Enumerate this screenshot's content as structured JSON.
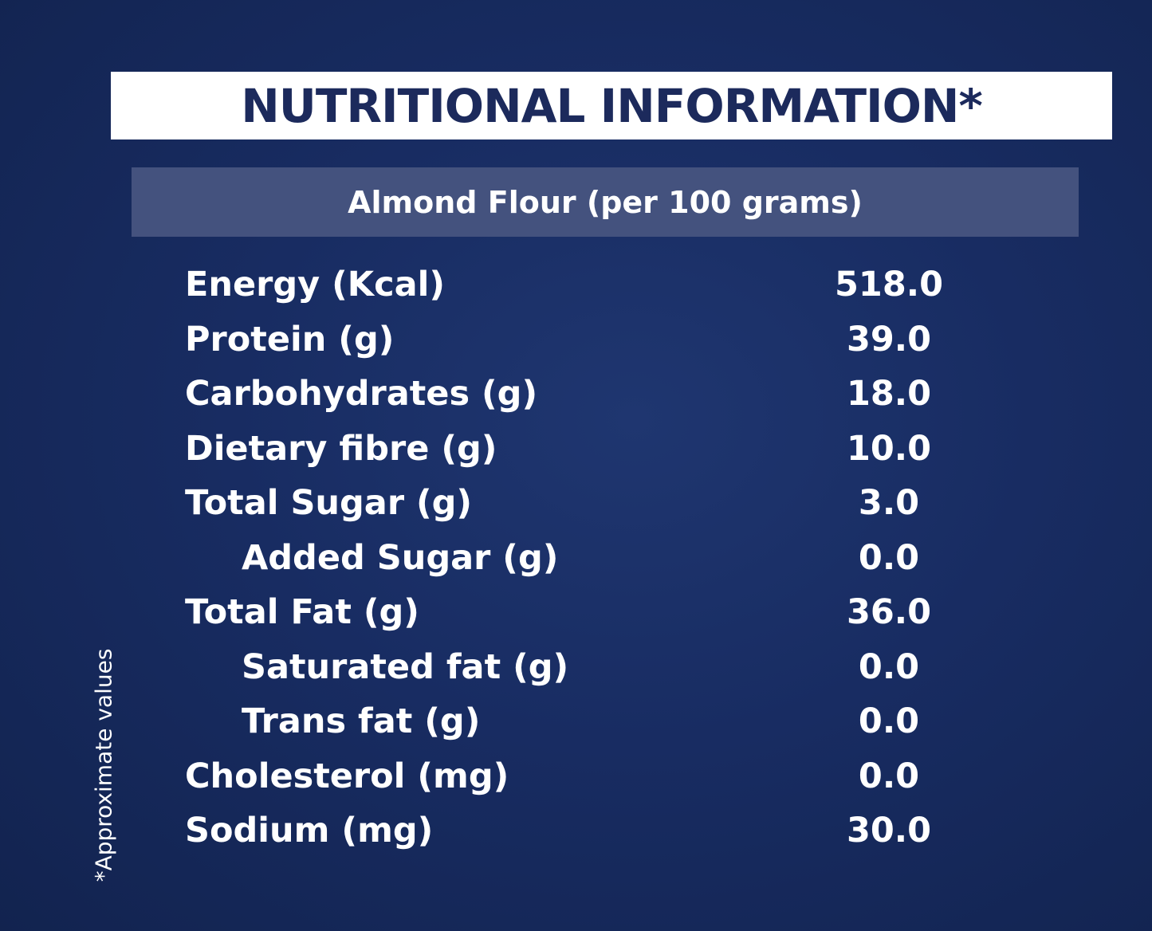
{
  "header": {
    "title": "NUTRITIONAL INFORMATION*"
  },
  "table": {
    "caption": "Almond Flour (per 100 grams)",
    "rows": [
      {
        "label": "Energy (Kcal)",
        "value": "518.0"
      },
      {
        "label": "Protein (g)",
        "value": "39.0"
      },
      {
        "label": "Carbohydrates (g)",
        "value": "18.0"
      },
      {
        "label": "Dietary fibre (g)",
        "value": "10.0"
      },
      {
        "label": "Total Sugar (g)",
        "value": "3.0",
        "sub_rows": [
          {
            "label": "Added Sugar (g)",
            "value": "0.0"
          }
        ]
      },
      {
        "label": "Total Fat (g)",
        "value": "36.0",
        "sub_rows": [
          {
            "label": "Saturated fat (g)",
            "value": "0.0"
          },
          {
            "label": "Trans fat (g)",
            "value": "0.0"
          }
        ]
      },
      {
        "label": "Cholesterol (mg)",
        "value": "0.0"
      },
      {
        "label": "Sodium (mg)",
        "value": "30.0"
      }
    ]
  },
  "footnote": "*Approximate values"
}
